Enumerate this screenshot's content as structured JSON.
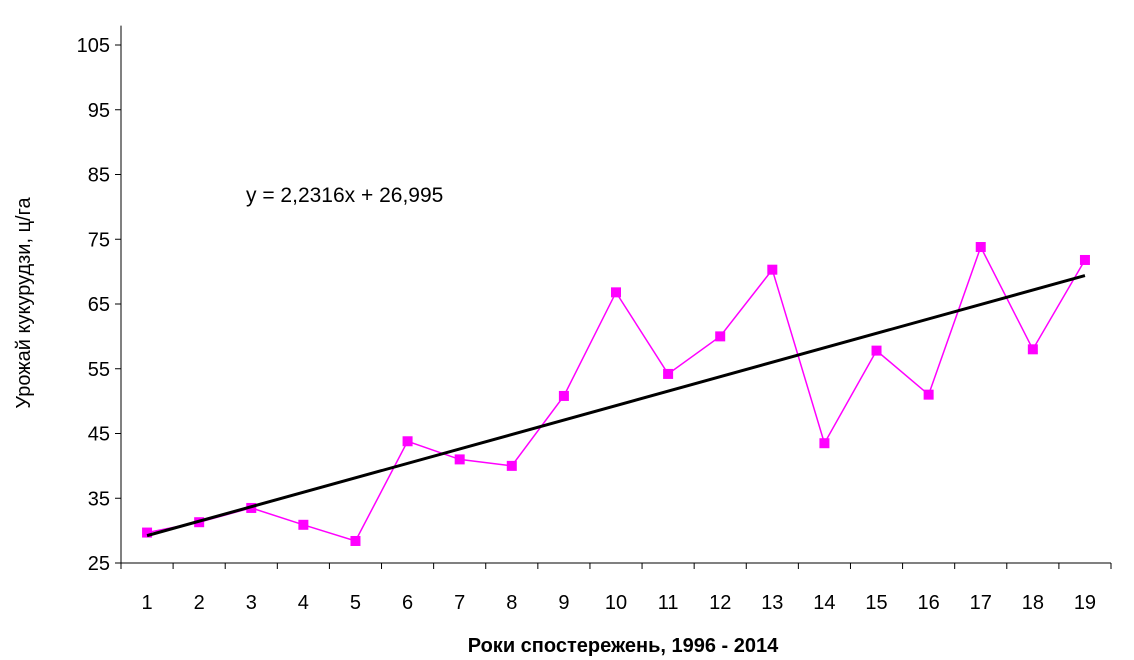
{
  "chart_data": {
    "type": "line",
    "title": "",
    "xlabel": "Роки спостережень, 1996 - 2014",
    "ylabel": "Урожай кукурудзи, ц/га",
    "categories": [
      "1",
      "2",
      "3",
      "4",
      "5",
      "6",
      "7",
      "8",
      "9",
      "10",
      "11",
      "12",
      "13",
      "14",
      "15",
      "16",
      "17",
      "18",
      "19"
    ],
    "yticks": [
      25,
      35,
      45,
      55,
      65,
      75,
      85,
      95,
      105
    ],
    "ylim": [
      25,
      108
    ],
    "series": [
      {
        "values": [
          29.7,
          31.3,
          33.5,
          30.9,
          28.4,
          43.8,
          41.0,
          40.0,
          50.8,
          66.8,
          54.2,
          60.0,
          70.3,
          43.5,
          57.8,
          51.0,
          73.8,
          58.0,
          71.8
        ],
        "color": "#ff00ff",
        "marker": "square"
      }
    ],
    "trendline": {
      "slope": 2.2316,
      "intercept": 26.995,
      "color": "#000000",
      "equation_label": "y = 2,2316x + 26,995"
    },
    "grid": false,
    "legend": "none"
  }
}
